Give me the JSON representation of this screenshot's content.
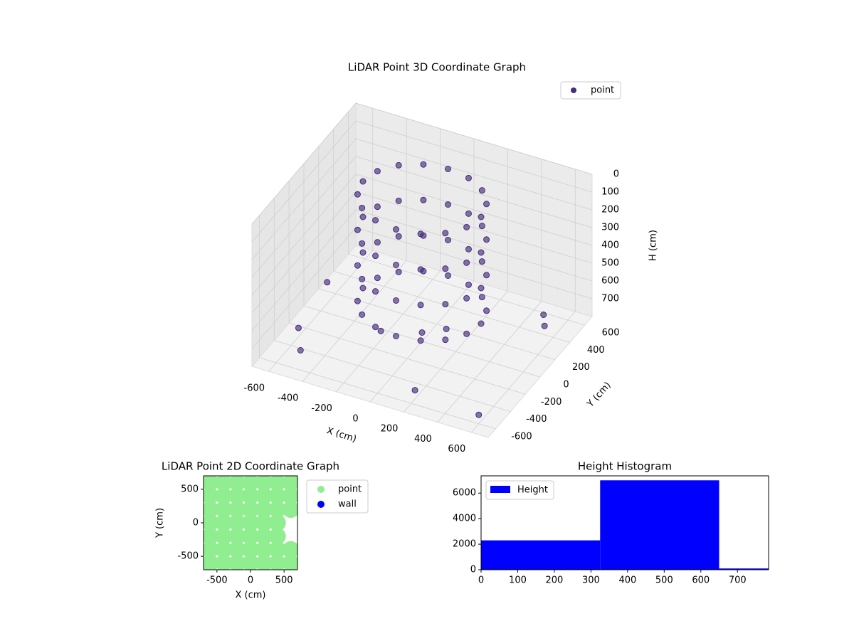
{
  "chart_data": [
    {
      "type": "scatter3d",
      "title": "LiDAR Point 3D Coordinate Graph",
      "xlabel": "X (cm)",
      "ylabel": "Y (cm)",
      "zlabel": "H (cm)",
      "xlim": [
        -700,
        700
      ],
      "ylim": [
        -700,
        700
      ],
      "zlim": [
        800,
        0
      ],
      "xticks": [
        -600,
        -400,
        -200,
        0,
        200,
        400,
        600
      ],
      "yticks": [
        -600,
        -400,
        -200,
        0,
        200,
        400,
        600
      ],
      "zticks": [
        0,
        100,
        200,
        300,
        400,
        500,
        600,
        700
      ],
      "legend": "upper right",
      "series": [
        {
          "name": "point",
          "color": "#472d7b",
          "x": [
            350,
            323,
            247,
            134,
            0,
            -134,
            -247,
            -323,
            -350,
            -323,
            -247,
            -134,
            0,
            134,
            247,
            323,
            350,
            323,
            247,
            134,
            0,
            -134,
            -247,
            -323,
            -350,
            -323,
            -247,
            -134,
            0,
            134,
            247,
            323,
            350,
            323,
            247,
            134,
            0,
            -134,
            -247,
            -323,
            -350,
            -323,
            -247,
            -134,
            0,
            134,
            247,
            323,
            350,
            323,
            247,
            134,
            0,
            -134,
            -247,
            -323,
            -350,
            -323,
            -247,
            -134,
            0,
            134,
            247,
            323,
            -600,
            -500,
            500,
            600,
            200,
            -650,
            550,
            0,
            100,
            -200
          ],
          "y": [
            0,
            134,
            247,
            323,
            350,
            323,
            247,
            134,
            0,
            -134,
            -247,
            -323,
            -350,
            -323,
            -247,
            -134,
            0,
            134,
            247,
            323,
            350,
            323,
            247,
            134,
            0,
            -134,
            -247,
            -323,
            -350,
            -323,
            -247,
            -134,
            0,
            134,
            247,
            323,
            350,
            323,
            247,
            134,
            0,
            -134,
            -247,
            -323,
            -350,
            -323,
            -247,
            -134,
            0,
            134,
            247,
            323,
            350,
            323,
            247,
            134,
            0,
            -134,
            -247,
            -323,
            -350,
            -323,
            -247,
            -134,
            -300,
            -500,
            500,
            -600,
            -550,
            200,
            400,
            0,
            100,
            -100
          ],
          "h": [
            0,
            0,
            0,
            0,
            0,
            0,
            0,
            0,
            0,
            0,
            0,
            0,
            0,
            0,
            0,
            0,
            200,
            200,
            200,
            200,
            200,
            200,
            200,
            200,
            200,
            200,
            200,
            200,
            200,
            200,
            200,
            200,
            400,
            400,
            400,
            400,
            400,
            400,
            400,
            400,
            400,
            400,
            400,
            400,
            400,
            400,
            400,
            400,
            600,
            600,
            600,
            600,
            600,
            600,
            600,
            600,
            600,
            600,
            600,
            600,
            600,
            600,
            600,
            600,
            750,
            750,
            750,
            750,
            750,
            750,
            750,
            750,
            750,
            750
          ]
        }
      ]
    },
    {
      "type": "scatter",
      "title": "LiDAR Point 2D Coordinate Graph",
      "xlabel": "X (cm)",
      "ylabel": "Y (cm)",
      "xlim": [
        -700,
        700
      ],
      "ylim": [
        -700,
        700
      ],
      "xticks": [
        -500,
        0,
        500
      ],
      "yticks": [
        -500,
        0,
        500
      ],
      "legend": "outside right",
      "series": [
        {
          "name": "point",
          "color": "#90ee90",
          "x": [
            -600,
            -400,
            -200,
            0,
            200,
            400,
            600,
            -600,
            -400,
            -200,
            0,
            200,
            400,
            600,
            -600,
            -400,
            -200,
            0,
            200,
            400,
            600,
            -600,
            -400,
            -200,
            0,
            200,
            400,
            -600,
            -400,
            -200,
            0,
            200,
            400,
            -600,
            -400,
            -200,
            0,
            200,
            400,
            600,
            -600,
            -400,
            -200,
            0,
            200,
            400,
            600
          ],
          "y": [
            600,
            600,
            600,
            600,
            600,
            600,
            600,
            400,
            400,
            400,
            400,
            400,
            400,
            400,
            200,
            200,
            200,
            200,
            200,
            200,
            200,
            0,
            0,
            0,
            0,
            0,
            0,
            -200,
            -200,
            -200,
            -200,
            -200,
            -200,
            -400,
            -400,
            -400,
            -400,
            -400,
            -400,
            -400,
            -600,
            -600,
            -600,
            -600,
            -600,
            -600,
            -600
          ]
        },
        {
          "name": "wall",
          "color": "#0000ff",
          "x": [],
          "y": []
        }
      ]
    },
    {
      "type": "histogram",
      "title": "Height Histogram",
      "xlim": [
        0,
        785
      ],
      "ylim": [
        0,
        7350
      ],
      "xticks": [
        0,
        100,
        200,
        300,
        400,
        500,
        600,
        700
      ],
      "yticks": [
        0,
        2000,
        4000,
        6000
      ],
      "legend": "upper left",
      "series": [
        {
          "name": "Height",
          "color": "#0000ff",
          "bins": [
            0,
            325,
            650,
            975
          ],
          "values": [
            2300,
            7000,
            100
          ]
        }
      ]
    }
  ]
}
